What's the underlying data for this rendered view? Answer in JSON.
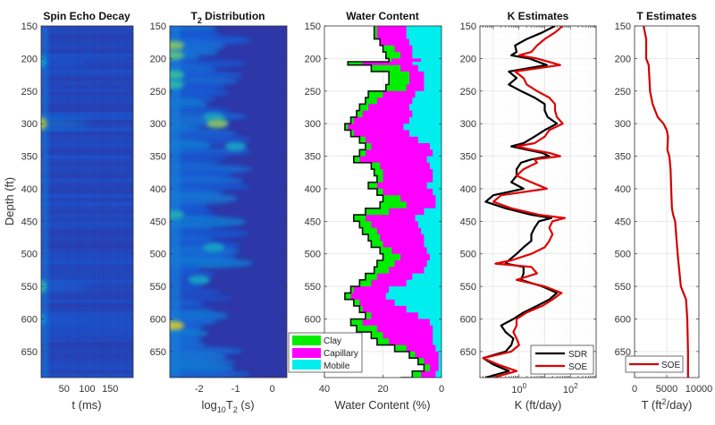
{
  "figure": {
    "ylabel": "Depth (ft)"
  },
  "chart_data": [
    {
      "type": "heatmap",
      "title": "Spin Echo Decay",
      "xlabel": "t (ms)",
      "ylabel": "Depth (ft)",
      "xlim": [
        0,
        200
      ],
      "ylim": [
        150,
        690
      ],
      "xticks": [
        50,
        100,
        150
      ],
      "yticks": [
        150,
        200,
        250,
        300,
        350,
        400,
        450,
        500,
        550,
        600,
        650
      ],
      "colormap": "parula",
      "highlights": [
        {
          "depth": 300,
          "t": 2,
          "intensity": 0.8
        },
        {
          "depth": 550,
          "t": 2,
          "intensity": 0.6
        },
        {
          "depth": 205,
          "t": 5,
          "intensity": 0.45
        },
        {
          "depth": 600,
          "t": 2,
          "intensity": 0.4
        }
      ]
    },
    {
      "type": "heatmap",
      "title": "T2 Distribution",
      "title_main": "T",
      "title_sub": "2",
      "title_rest": " Distribution",
      "xlabel": "log10T2 (s)",
      "xlabel_parts": [
        "log",
        "10",
        "T",
        "2",
        " (s)"
      ],
      "xlim": [
        -2.8,
        0.4
      ],
      "ylim": [
        150,
        690
      ],
      "xticks": [
        -2,
        -1,
        0
      ],
      "xtick_labels": [
        "-2",
        "-1",
        "0"
      ],
      "yticks": [
        150,
        200,
        250,
        300,
        350,
        400,
        450,
        500,
        550,
        600,
        650
      ],
      "colormap": "parula",
      "blobs": [
        {
          "depth": 180,
          "log_t2": -2.7,
          "intensity": 0.75
        },
        {
          "depth": 195,
          "log_t2": -2.7,
          "intensity": 0.7
        },
        {
          "depth": 225,
          "log_t2": -2.7,
          "intensity": 0.65
        },
        {
          "depth": 240,
          "log_t2": -2.7,
          "intensity": 0.6
        },
        {
          "depth": 290,
          "log_t2": -1.6,
          "intensity": 0.5
        },
        {
          "depth": 300,
          "log_t2": -1.5,
          "intensity": 0.75
        },
        {
          "depth": 335,
          "log_t2": -1.0,
          "intensity": 0.5
        },
        {
          "depth": 440,
          "log_t2": -2.7,
          "intensity": 0.55
        },
        {
          "depth": 490,
          "log_t2": -1.6,
          "intensity": 0.5
        },
        {
          "depth": 540,
          "log_t2": -2.0,
          "intensity": 0.5
        },
        {
          "depth": 610,
          "log_t2": -2.7,
          "intensity": 0.85
        }
      ]
    },
    {
      "type": "area",
      "title": "Water Content",
      "xlabel": "Water Content (%)",
      "xlim": [
        40,
        0
      ],
      "xticks": [
        40,
        20,
        0
      ],
      "ylim": [
        150,
        690
      ],
      "yticks": [
        150,
        200,
        250,
        300,
        350,
        400,
        450,
        500,
        550,
        600,
        650
      ],
      "legend": {
        "placement": "bottom-left",
        "entries": [
          "Clay",
          "Capillary",
          "Mobile"
        ]
      },
      "colors": {
        "Clay": "#00ee00",
        "Capillary": "#ff00ff",
        "Mobile": "#00eeee",
        "outline": "#111111"
      },
      "depth": [
        150,
        160,
        170,
        180,
        190,
        200,
        205,
        210,
        220,
        230,
        240,
        250,
        260,
        270,
        280,
        290,
        300,
        310,
        320,
        330,
        340,
        350,
        360,
        370,
        380,
        390,
        400,
        410,
        420,
        430,
        440,
        450,
        460,
        470,
        480,
        490,
        500,
        510,
        520,
        530,
        540,
        550,
        560,
        570,
        580,
        590,
        600,
        610,
        620,
        630,
        640,
        650,
        660,
        670,
        680,
        690
      ],
      "total": [
        23,
        23,
        21,
        20,
        19,
        18,
        32,
        24,
        18,
        18,
        19,
        25,
        26,
        28,
        29,
        31,
        33,
        31,
        28,
        26,
        28,
        30,
        24,
        23,
        22,
        25,
        22,
        20,
        21,
        26,
        30,
        28,
        27,
        25,
        24,
        21,
        20,
        22,
        23,
        26,
        28,
        31,
        33,
        30,
        28,
        26,
        31,
        29,
        24,
        22,
        16,
        11,
        8,
        6,
        10,
        14
      ],
      "clay_cap_boundary": [
        22,
        22,
        21,
        16,
        14,
        17,
        27,
        14,
        11,
        11,
        12,
        20,
        22,
        25,
        27,
        30,
        32,
        30,
        26,
        24,
        26,
        28,
        21,
        20,
        20,
        22,
        20,
        14,
        12,
        18,
        26,
        24,
        22,
        21,
        20,
        17,
        14,
        16,
        18,
        22,
        24,
        30,
        31,
        28,
        27,
        24,
        27,
        22,
        20,
        18,
        12,
        9,
        6,
        4,
        7,
        10
      ],
      "cap_mobile_boundary": [
        12,
        12,
        11,
        10,
        10,
        7,
        10,
        8,
        6,
        6,
        6,
        9,
        10,
        11,
        10,
        11,
        13,
        11,
        8,
        4,
        3,
        5,
        4,
        3,
        3,
        5,
        3,
        2,
        2,
        6,
        9,
        8,
        7,
        6,
        6,
        5,
        4,
        5,
        6,
        10,
        12,
        18,
        19,
        16,
        12,
        8,
        4,
        3,
        3,
        3,
        2,
        1,
        1,
        1,
        2,
        2
      ]
    },
    {
      "type": "line",
      "title": "K Estimates",
      "xlabel": "K (ft/day)",
      "xscale": "log",
      "xlim": [
        0.03,
        1000
      ],
      "xticks": [
        1,
        100
      ],
      "xtick_labels": [
        [
          "10",
          "0"
        ],
        [
          "10",
          "2"
        ]
      ],
      "ylim": [
        150,
        690
      ],
      "yticks": [
        150,
        200,
        250,
        300,
        350,
        400,
        450,
        500,
        550,
        600,
        650
      ],
      "legend": {
        "placement": "bottom-right",
        "entries": [
          "SDR",
          "SOE"
        ]
      },
      "depth": [
        150,
        160,
        170,
        180,
        190,
        195,
        200,
        210,
        220,
        230,
        240,
        250,
        260,
        270,
        280,
        290,
        300,
        310,
        320,
        330,
        335,
        340,
        345,
        350,
        355,
        360,
        370,
        380,
        390,
        400,
        410,
        420,
        430,
        440,
        445,
        450,
        460,
        470,
        480,
        490,
        500,
        510,
        515,
        520,
        530,
        540,
        550,
        560,
        570,
        580,
        590,
        600,
        610,
        620,
        630,
        640,
        650,
        660,
        670,
        680,
        690
      ],
      "series": [
        {
          "name": "SDR",
          "color": "#000000",
          "values": [
            25,
            8,
            2,
            0.7,
            0.8,
            0.5,
            2.5,
            12,
            0.4,
            0.8,
            0.4,
            1.2,
            4,
            10,
            10,
            13,
            30,
            10,
            4,
            1.5,
            0.5,
            2,
            8,
            15,
            3,
            1.2,
            0.8,
            0.8,
            0.5,
            1.5,
            0.1,
            0.05,
            0.3,
            3,
            18,
            6,
            4,
            3,
            3,
            1.5,
            0.8,
            0.4,
            0.3,
            1.5,
            1.5,
            1.2,
            8,
            30,
            15,
            5,
            1.5,
            0.6,
            0.2,
            0.3,
            0.6,
            0.5,
            0.3,
            0.04,
            0.1,
            0.4,
            0.05
          ]
        },
        {
          "name": "SOE",
          "color": "#e00000",
          "values": [
            50,
            25,
            10,
            5,
            3,
            1,
            5,
            40,
            0.7,
            1.5,
            2,
            5,
            15,
            25,
            25,
            30,
            50,
            15,
            10,
            4,
            0.8,
            3,
            15,
            40,
            4,
            5,
            1.5,
            0.8,
            3,
            12,
            0.2,
            0.1,
            0.5,
            6,
            60,
            20,
            15,
            20,
            15,
            10,
            3,
            0.5,
            0.12,
            3,
            5,
            0.8,
            10,
            45,
            20,
            8,
            2,
            0.8,
            0.8,
            0.6,
            0.8,
            1,
            0.5,
            0.04,
            0.15,
            0.8,
            0.1
          ]
        }
      ]
    },
    {
      "type": "line",
      "title": "T Estimates",
      "xlabel": "T (ft2/day)",
      "xlabel_parts": [
        "T (ft",
        "2",
        "/day)"
      ],
      "xlim": [
        0,
        10000
      ],
      "xticks": [
        0,
        5000,
        10000
      ],
      "xtick_labels": [
        "0",
        "5000",
        "10000"
      ],
      "ylim": [
        150,
        690
      ],
      "yticks": [
        150,
        200,
        250,
        300,
        350,
        400,
        450,
        500,
        550,
        600,
        650
      ],
      "legend": {
        "placement": "bottom-left",
        "entries": [
          "SOE"
        ]
      },
      "depth": [
        150,
        170,
        190,
        200,
        210,
        230,
        250,
        270,
        290,
        300,
        310,
        320,
        340,
        350,
        370,
        400,
        430,
        440,
        450,
        500,
        550,
        570,
        600,
        650,
        690
      ],
      "series": [
        {
          "name": "SOE",
          "color": "#d00000",
          "values": [
            1400,
            1800,
            1800,
            1800,
            2200,
            2300,
            2400,
            2800,
            3600,
            4500,
            5000,
            5200,
            5100,
            5400,
            5600,
            5700,
            5800,
            6000,
            6300,
            6700,
            7200,
            8000,
            8200,
            8300,
            8300
          ]
        }
      ]
    }
  ]
}
